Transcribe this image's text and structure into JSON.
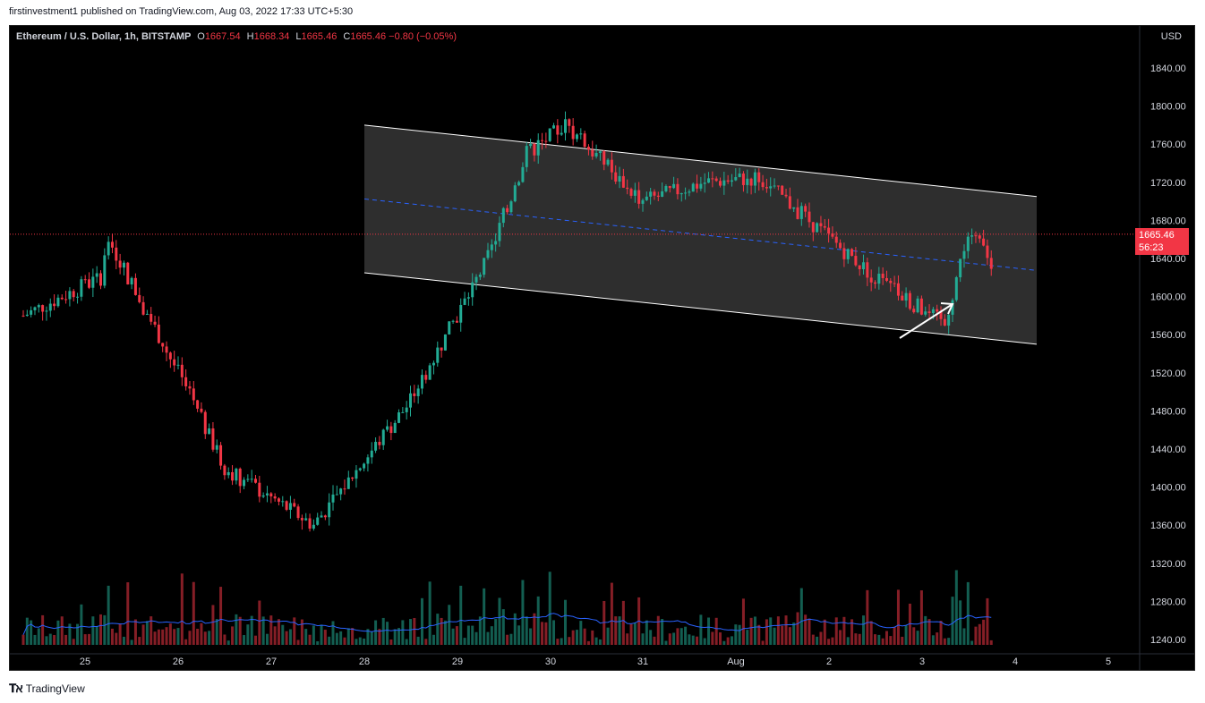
{
  "header": {
    "publish_text": "firstinvestment1 published on TradingView.com, Aug 03, 2022 17:33 UTC+5:30"
  },
  "legend": {
    "symbol": "Ethereum / U.S. Dollar, 1h, BITSTAMP",
    "open_label": "O",
    "open": "1667.54",
    "high_label": "H",
    "high": "1668.34",
    "low_label": "L",
    "low": "1665.46",
    "close_label": "C",
    "close": "1665.46",
    "change": "−0.80 (−0.05%)"
  },
  "currency": "USD",
  "price_tag": {
    "price": "1665.46",
    "countdown": "56:23"
  },
  "footer": {
    "brand": "TradingView"
  },
  "colors": {
    "up": "#22ab94",
    "down": "#f23645",
    "channel_fill": "#363636",
    "channel_line": "#ffffff",
    "midline": "#2962ff",
    "volume_ma": "#2962ff",
    "price_line": "#f23645"
  },
  "chart_data": {
    "type": "candlestick",
    "y_axis": {
      "min": 1230,
      "max": 1880,
      "ticks": [
        "1240.00",
        "1280.00",
        "1320.00",
        "1360.00",
        "1400.00",
        "1440.00",
        "1480.00",
        "1520.00",
        "1560.00",
        "1600.00",
        "1640.00",
        "1680.00",
        "1720.00",
        "1760.00",
        "1800.00",
        "1840.00"
      ]
    },
    "x_axis": {
      "ticks": [
        "25",
        "26",
        "27",
        "28",
        "29",
        "30",
        "31",
        "Aug",
        "2",
        "3",
        "4",
        "5"
      ]
    },
    "last_price": 1665.46,
    "key_points": [
      {
        "x": "24",
        "price": 1580
      },
      {
        "x": "25",
        "price": 1620
      },
      {
        "x": "25",
        "price": 1660
      },
      {
        "x": "26",
        "price": 1520
      },
      {
        "x": "26",
        "price": 1420
      },
      {
        "x": "27",
        "price": 1360
      },
      {
        "x": "28",
        "price": 1490
      },
      {
        "x": "28",
        "price": 1640
      },
      {
        "x": "29",
        "price": 1750
      },
      {
        "x": "29",
        "price": 1780
      },
      {
        "x": "30",
        "price": 1700
      },
      {
        "x": "31",
        "price": 1720
      },
      {
        "x": "Aug",
        "price": 1725
      },
      {
        "x": "Aug",
        "price": 1690
      },
      {
        "x": "2",
        "price": 1620
      },
      {
        "x": "2",
        "price": 1570
      },
      {
        "x": "3",
        "price": 1670
      },
      {
        "x": "3",
        "price": 1595
      },
      {
        "x": "3",
        "price": 1665.46
      }
    ],
    "channel": {
      "upper": [
        {
          "x": "28",
          "price": 1780
        },
        {
          "x": "4",
          "price": 1705
        }
      ],
      "lower": [
        {
          "x": "28",
          "price": 1625
        },
        {
          "x": "4",
          "price": 1550
        }
      ]
    }
  }
}
